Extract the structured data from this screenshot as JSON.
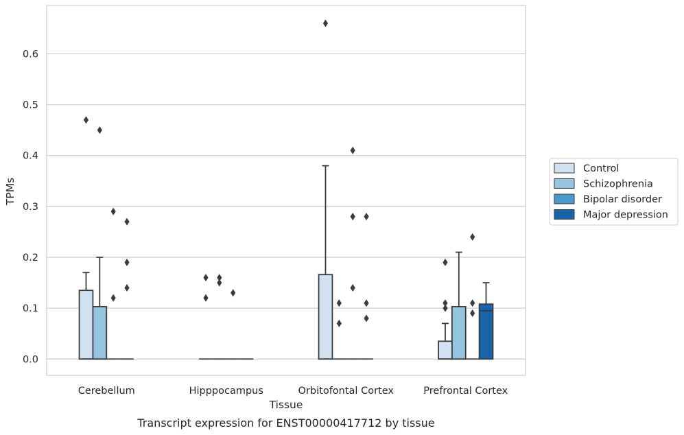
{
  "chart_data": {
    "type": "box",
    "title": "",
    "caption": "Transcript expression for ENST00000417712 by tissue",
    "xlabel": "Tissue",
    "ylabel": "TPMs",
    "ylim": [
      -0.032,
      0.695
    ],
    "yticks": [
      0.0,
      0.1,
      0.2,
      0.3,
      0.4,
      0.5,
      0.6
    ],
    "ytick_labels": [
      "0.0",
      "0.1",
      "0.2",
      "0.3",
      "0.4",
      "0.5",
      "0.6"
    ],
    "grid": true,
    "legend_position": "right",
    "categories": [
      "Cerebellum",
      "Hipppocampus",
      "Orbitofontal Cortex",
      "Prefrontal Cortex"
    ],
    "series": [
      {
        "name": "Control",
        "color": "#d0e1f2",
        "boxes": [
          {
            "q1": 0.0,
            "median": 0.0,
            "q3": 0.135,
            "whisker_low": 0.0,
            "whisker_high": 0.17,
            "outliers": [
              0.47
            ]
          },
          {
            "q1": 0.0,
            "median": 0.0,
            "q3": 0.0,
            "whisker_low": 0.0,
            "whisker_high": 0.0,
            "outliers": [
              0.16,
              0.12
            ]
          },
          {
            "q1": 0.0,
            "median": 0.0,
            "q3": 0.166,
            "whisker_low": 0.0,
            "whisker_high": 0.38,
            "outliers": [
              0.66
            ]
          },
          {
            "q1": 0.0,
            "median": 0.0,
            "q3": 0.035,
            "whisker_low": 0.0,
            "whisker_high": 0.07,
            "outliers": [
              0.19,
              0.11,
              0.1
            ]
          }
        ]
      },
      {
        "name": "Schizophrenia",
        "color": "#94c4df",
        "boxes": [
          {
            "q1": 0.0,
            "median": 0.0,
            "q3": 0.103,
            "whisker_low": 0.0,
            "whisker_high": 0.2,
            "outliers": [
              0.45
            ]
          },
          {
            "q1": 0.0,
            "median": 0.0,
            "q3": 0.0,
            "whisker_low": 0.0,
            "whisker_high": 0.0,
            "outliers": [
              0.16,
              0.15
            ]
          },
          {
            "q1": 0.0,
            "median": 0.0,
            "q3": 0.0,
            "whisker_low": 0.0,
            "whisker_high": 0.0,
            "outliers": [
              0.11,
              0.07
            ]
          },
          {
            "q1": 0.0,
            "median": 0.0,
            "q3": 0.103,
            "whisker_low": 0.0,
            "whisker_high": 0.21,
            "outliers": []
          }
        ]
      },
      {
        "name": "Bipolar disorder",
        "color": "#4a98c9",
        "boxes": [
          {
            "q1": 0.0,
            "median": 0.0,
            "q3": 0.0,
            "whisker_low": 0.0,
            "whisker_high": 0.0,
            "outliers": [
              0.29,
              0.12
            ]
          },
          {
            "q1": 0.0,
            "median": 0.0,
            "q3": 0.0,
            "whisker_low": 0.0,
            "whisker_high": 0.0,
            "outliers": [
              0.13
            ]
          },
          {
            "q1": 0.0,
            "median": 0.0,
            "q3": 0.0,
            "whisker_low": 0.0,
            "whisker_high": 0.0,
            "outliers": [
              0.41,
              0.28,
              0.14
            ]
          },
          {
            "q1": 0.0,
            "median": 0.0,
            "q3": 0.0,
            "whisker_low": 0.0,
            "whisker_high": 0.0,
            "outliers": [
              0.24,
              0.11,
              0.09
            ]
          }
        ]
      },
      {
        "name": "Major depression",
        "color": "#1764ab",
        "boxes": [
          {
            "q1": 0.0,
            "median": 0.0,
            "q3": 0.0,
            "whisker_low": 0.0,
            "whisker_high": 0.0,
            "outliers": [
              0.27,
              0.19,
              0.14
            ]
          },
          {
            "q1": 0.0,
            "median": 0.0,
            "q3": 0.0,
            "whisker_low": 0.0,
            "whisker_high": 0.0,
            "outliers": []
          },
          {
            "q1": 0.0,
            "median": 0.0,
            "q3": 0.0,
            "whisker_low": 0.0,
            "whisker_high": 0.0,
            "outliers": [
              0.28,
              0.11,
              0.08
            ]
          },
          {
            "q1": 0.0,
            "median": 0.095,
            "q3": 0.108,
            "whisker_low": 0.0,
            "whisker_high": 0.15,
            "outliers": []
          }
        ]
      }
    ]
  }
}
